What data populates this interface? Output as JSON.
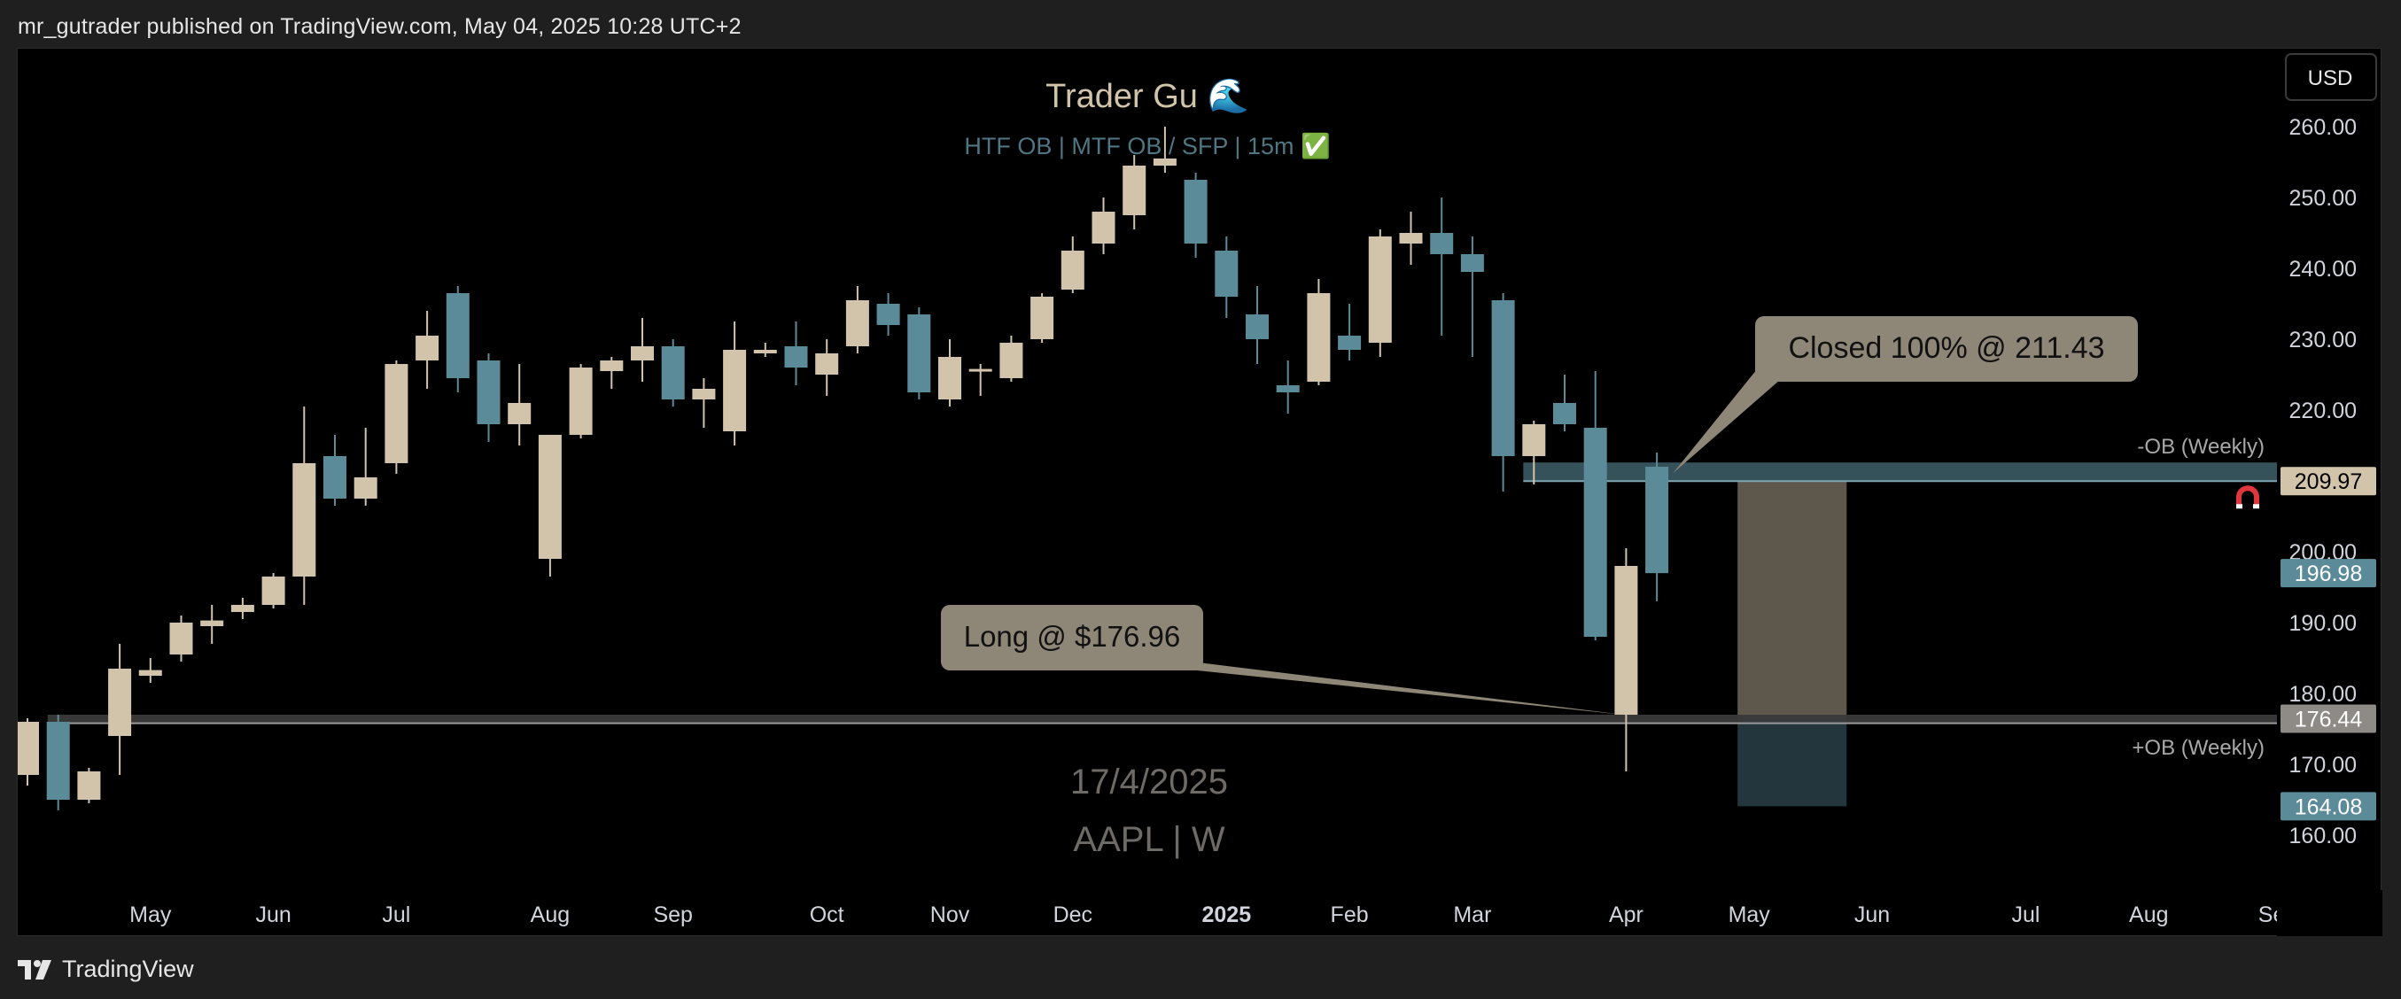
{
  "header": {
    "published": "mr_gutrader published on TradingView.com, May 04, 2025 10:28 UTC+2"
  },
  "footer": {
    "brand": "TradingView",
    "logo_icon": "tradingview-logo-icon"
  },
  "currency_button": "USD",
  "colors": {
    "up": "#d2c3ab",
    "down": "#5b8b99",
    "bg": "#000000",
    "callout": "#8e8676",
    "ob_band": "#3b5a64",
    "target_box": "#5e574c",
    "stop_box": "#24363d"
  },
  "chart_data": {
    "type": "candlestick",
    "symbol": "AAPL | W",
    "title": "Trader Gu 🌊",
    "subtitle": "HTF OB  |  MTF OB / SFP  |  15m ✅",
    "watermark_date": "17/4/2025",
    "ylim": [
      157,
      263
    ],
    "y_ticks": [
      160,
      170,
      180,
      190,
      200,
      210,
      220,
      230,
      240,
      250,
      260
    ],
    "x_labels": [
      {
        "label": "May",
        "bar": 4
      },
      {
        "label": "Jun",
        "bar": 8
      },
      {
        "label": "Jul",
        "bar": 12
      },
      {
        "label": "Aug",
        "bar": 17
      },
      {
        "label": "Sep",
        "bar": 21
      },
      {
        "label": "Oct",
        "bar": 26
      },
      {
        "label": "Nov",
        "bar": 30
      },
      {
        "label": "Dec",
        "bar": 34
      },
      {
        "label": "2025",
        "bar": 39,
        "bold": true
      },
      {
        "label": "Feb",
        "bar": 43
      },
      {
        "label": "Mar",
        "bar": 47
      },
      {
        "label": "Apr",
        "bar": 52
      },
      {
        "label": "May",
        "bar": 56
      },
      {
        "label": "Jun",
        "bar": 60
      },
      {
        "label": "Jul",
        "bar": 65
      },
      {
        "label": "Aug",
        "bar": 69
      },
      {
        "label": "Se",
        "bar": 73
      }
    ],
    "candles": [
      {
        "o": 168.5,
        "h": 176.5,
        "l": 167.0,
        "c": 176.0
      },
      {
        "o": 176.0,
        "h": 177.0,
        "l": 163.5,
        "c": 165.0
      },
      {
        "o": 165.0,
        "h": 169.5,
        "l": 164.5,
        "c": 169.0
      },
      {
        "o": 174.0,
        "h": 187.0,
        "l": 168.5,
        "c": 183.5
      },
      {
        "o": 182.5,
        "h": 185.0,
        "l": 181.5,
        "c": 183.3
      },
      {
        "o": 185.5,
        "h": 191.0,
        "l": 184.5,
        "c": 190.0
      },
      {
        "o": 189.5,
        "h": 192.5,
        "l": 187.0,
        "c": 190.3
      },
      {
        "o": 191.5,
        "h": 193.5,
        "l": 190.5,
        "c": 192.5
      },
      {
        "o": 192.5,
        "h": 197.0,
        "l": 192.0,
        "c": 196.5
      },
      {
        "o": 196.5,
        "h": 220.5,
        "l": 192.5,
        "c": 212.5
      },
      {
        "o": 213.5,
        "h": 216.5,
        "l": 206.5,
        "c": 207.5
      },
      {
        "o": 207.5,
        "h": 217.5,
        "l": 206.5,
        "c": 210.5
      },
      {
        "o": 212.5,
        "h": 227.0,
        "l": 211.0,
        "c": 226.5
      },
      {
        "o": 227.0,
        "h": 234.0,
        "l": 223.0,
        "c": 230.5
      },
      {
        "o": 236.5,
        "h": 237.5,
        "l": 222.5,
        "c": 224.5
      },
      {
        "o": 227.0,
        "h": 228.0,
        "l": 215.5,
        "c": 218.0
      },
      {
        "o": 218.0,
        "h": 226.5,
        "l": 215.0,
        "c": 221.0
      },
      {
        "o": 199.0,
        "h": 216.5,
        "l": 196.5,
        "c": 216.5
      },
      {
        "o": 216.5,
        "h": 226.5,
        "l": 216.0,
        "c": 226.0
      },
      {
        "o": 225.5,
        "h": 227.5,
        "l": 223.0,
        "c": 227.0
      },
      {
        "o": 227.0,
        "h": 233.0,
        "l": 224.0,
        "c": 229.0
      },
      {
        "o": 229.0,
        "h": 230.0,
        "l": 220.5,
        "c": 221.5
      },
      {
        "o": 221.5,
        "h": 224.5,
        "l": 217.5,
        "c": 223.0
      },
      {
        "o": 217.0,
        "h": 232.5,
        "l": 215.0,
        "c": 228.5
      },
      {
        "o": 228.0,
        "h": 229.5,
        "l": 227.5,
        "c": 228.5
      },
      {
        "o": 229.0,
        "h": 232.5,
        "l": 223.5,
        "c": 226.0
      },
      {
        "o": 225.0,
        "h": 230.0,
        "l": 222.0,
        "c": 228.0
      },
      {
        "o": 229.0,
        "h": 237.5,
        "l": 228.0,
        "c": 235.5
      },
      {
        "o": 235.0,
        "h": 236.5,
        "l": 230.5,
        "c": 232.0
      },
      {
        "o": 233.5,
        "h": 234.5,
        "l": 221.5,
        "c": 222.5
      },
      {
        "o": 221.5,
        "h": 230.0,
        "l": 220.5,
        "c": 227.5
      },
      {
        "o": 225.5,
        "h": 226.5,
        "l": 222.0,
        "c": 225.8
      },
      {
        "o": 224.5,
        "h": 230.5,
        "l": 224.0,
        "c": 229.5
      },
      {
        "o": 230.0,
        "h": 236.5,
        "l": 229.5,
        "c": 236.0
      },
      {
        "o": 237.0,
        "h": 244.5,
        "l": 236.5,
        "c": 242.5
      },
      {
        "o": 243.5,
        "h": 250.0,
        "l": 242.0,
        "c": 248.0
      },
      {
        "o": 247.5,
        "h": 256.0,
        "l": 245.5,
        "c": 254.5
      },
      {
        "o": 254.5,
        "h": 260.0,
        "l": 253.5,
        "c": 255.5
      },
      {
        "o": 252.5,
        "h": 253.5,
        "l": 241.5,
        "c": 243.5
      },
      {
        "o": 242.5,
        "h": 244.5,
        "l": 233.0,
        "c": 236.0
      },
      {
        "o": 233.5,
        "h": 237.5,
        "l": 226.5,
        "c": 230.0
      },
      {
        "o": 223.5,
        "h": 227.0,
        "l": 219.5,
        "c": 222.5
      },
      {
        "o": 224.0,
        "h": 238.5,
        "l": 223.5,
        "c": 236.5
      },
      {
        "o": 230.5,
        "h": 235.0,
        "l": 227.0,
        "c": 228.5
      },
      {
        "o": 229.5,
        "h": 245.5,
        "l": 227.5,
        "c": 244.5
      },
      {
        "o": 243.5,
        "h": 248.0,
        "l": 240.5,
        "c": 245.0
      },
      {
        "o": 245.0,
        "h": 250.0,
        "l": 230.5,
        "c": 242.0
      },
      {
        "o": 242.0,
        "h": 244.5,
        "l": 227.5,
        "c": 239.5
      },
      {
        "o": 235.5,
        "h": 236.5,
        "l": 208.5,
        "c": 213.5
      },
      {
        "o": 213.5,
        "h": 218.5,
        "l": 209.5,
        "c": 218.0
      },
      {
        "o": 221.0,
        "h": 225.0,
        "l": 217.0,
        "c": 218.0
      },
      {
        "o": 217.5,
        "h": 225.5,
        "l": 187.5,
        "c": 188.0
      },
      {
        "o": 177.0,
        "h": 200.5,
        "l": 169.0,
        "c": 198.0
      },
      {
        "o": 212.0,
        "h": 214.0,
        "l": 193.0,
        "c": 196.98
      }
    ],
    "zones": [
      {
        "name": "-OB (Weekly)",
        "type": "resistance",
        "y_low": 209.97,
        "y_high": 212.6,
        "x_from_bar": 49
      },
      {
        "name": "+OB (Weekly)",
        "type": "support",
        "y_low": 175.8,
        "y_high": 177.0,
        "x_from_bar": 1
      }
    ],
    "position": {
      "entry": 209.97,
      "target_low": 164.08,
      "x_from_bar": 56,
      "x_to_bar": 59
    },
    "annotations": [
      {
        "text": "Long @ $176.96",
        "price": 176.96,
        "bar": 52
      },
      {
        "text": "Closed 100% @ 211.43",
        "price": 211.43,
        "bar": 53
      }
    ],
    "price_labels": [
      {
        "value": "209.97",
        "price": 209.97,
        "bg": "#d2c3ab",
        "fg": "#000000"
      },
      {
        "value": "196.98",
        "price": 196.98,
        "bg": "#5b8b99",
        "fg": "#ffffff"
      },
      {
        "value": "176.44",
        "price": 176.44,
        "bg": "#8e8a85",
        "fg": "#ffffff"
      },
      {
        "value": "164.08",
        "price": 164.08,
        "bg": "#5b8b99",
        "fg": "#ffffff"
      }
    ],
    "zone_labels": [
      {
        "text": "-OB (Weekly)",
        "price": 215.0
      },
      {
        "text": "+OB (Weekly)",
        "price": 172.5
      }
    ]
  }
}
